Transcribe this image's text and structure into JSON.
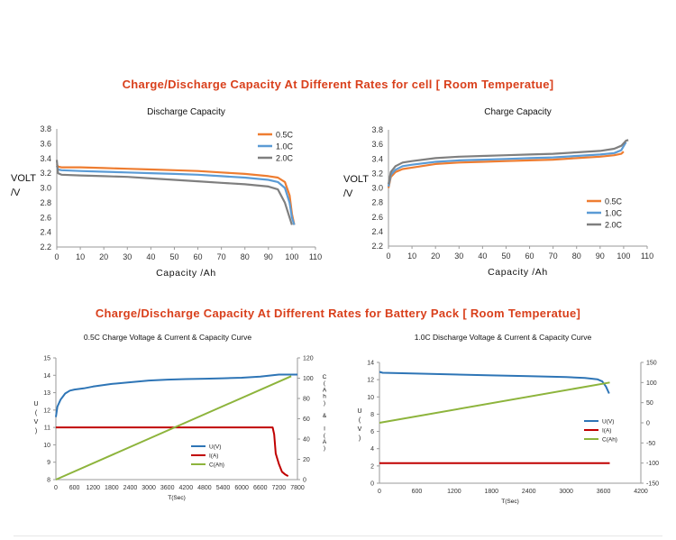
{
  "section1_title": "Charge/Discharge Capacity At Different Rates for cell [ Room Temperatue]",
  "section2_title": "Charge/Discharge Capacity At Different Rates for Battery Pack [ Room Temperatue]",
  "chart_data": [
    {
      "type": "line",
      "title": "Discharge Capacity",
      "xlabel": "Capacity /Ah",
      "ylabel": "VOLT /V",
      "xlim": [
        0,
        110
      ],
      "ylim": [
        2.2,
        3.8
      ],
      "xticks": [
        0,
        10,
        20,
        30,
        40,
        50,
        60,
        70,
        80,
        90,
        100,
        110
      ],
      "yticks": [
        2.2,
        2.4,
        2.6,
        2.8,
        3.0,
        3.2,
        3.4,
        3.6,
        3.8
      ],
      "legend": "top-right",
      "grid": false,
      "series": [
        {
          "name": "0.5C",
          "color": "#ee7d31",
          "x": [
            0,
            0.5,
            2,
            10,
            20,
            30,
            40,
            50,
            60,
            70,
            80,
            90,
            94,
            97,
            99,
            100,
            101
          ],
          "y": [
            3.32,
            3.29,
            3.28,
            3.28,
            3.27,
            3.26,
            3.25,
            3.24,
            3.23,
            3.21,
            3.19,
            3.16,
            3.14,
            3.08,
            2.9,
            2.65,
            2.5
          ]
        },
        {
          "name": "1.0C",
          "color": "#5b9bd5",
          "x": [
            0,
            0.5,
            2,
            10,
            20,
            30,
            40,
            50,
            60,
            70,
            80,
            90,
            94,
            97,
            99,
            100,
            101
          ],
          "y": [
            3.3,
            3.25,
            3.24,
            3.23,
            3.22,
            3.21,
            3.2,
            3.19,
            3.18,
            3.16,
            3.14,
            3.11,
            3.08,
            3.0,
            2.8,
            2.6,
            2.5
          ]
        },
        {
          "name": "2.0C",
          "color": "#7f7f7f",
          "x": [
            0,
            0.5,
            2,
            10,
            20,
            30,
            40,
            50,
            60,
            70,
            80,
            90,
            94,
            97,
            99,
            100
          ],
          "y": [
            3.38,
            3.2,
            3.18,
            3.17,
            3.16,
            3.15,
            3.13,
            3.11,
            3.09,
            3.07,
            3.05,
            3.02,
            2.98,
            2.8,
            2.6,
            2.5
          ]
        }
      ]
    },
    {
      "type": "line",
      "title": "Charge Capacity",
      "xlabel": "Capacity /Ah",
      "ylabel": "VOLT /V",
      "xlim": [
        0,
        110
      ],
      "ylim": [
        2.2,
        3.8
      ],
      "xticks": [
        0,
        10,
        20,
        30,
        40,
        50,
        60,
        70,
        80,
        90,
        100,
        110
      ],
      "yticks": [
        2.2,
        2.4,
        2.6,
        2.8,
        3.0,
        3.2,
        3.4,
        3.6,
        3.8
      ],
      "legend": "bottom-right",
      "grid": false,
      "series": [
        {
          "name": "0.5C",
          "color": "#ee7d31",
          "x": [
            0,
            1,
            3,
            6,
            10,
            20,
            30,
            40,
            50,
            60,
            70,
            80,
            90,
            96,
            99,
            100
          ],
          "y": [
            3.0,
            3.15,
            3.22,
            3.26,
            3.28,
            3.33,
            3.35,
            3.36,
            3.37,
            3.38,
            3.39,
            3.41,
            3.43,
            3.45,
            3.47,
            3.5
          ]
        },
        {
          "name": "1.0C",
          "color": "#5b9bd5",
          "x": [
            0,
            1,
            3,
            6,
            10,
            20,
            30,
            40,
            50,
            60,
            70,
            80,
            90,
            96,
            99,
            101
          ],
          "y": [
            3.02,
            3.18,
            3.25,
            3.3,
            3.32,
            3.36,
            3.38,
            3.39,
            3.4,
            3.41,
            3.42,
            3.44,
            3.46,
            3.48,
            3.52,
            3.63
          ]
        },
        {
          "name": "2.0C",
          "color": "#7f7f7f",
          "x": [
            0,
            1,
            3,
            6,
            10,
            20,
            30,
            40,
            50,
            60,
            70,
            80,
            90,
            96,
            99,
            101,
            102
          ],
          "y": [
            3.05,
            3.22,
            3.3,
            3.35,
            3.37,
            3.41,
            3.43,
            3.44,
            3.45,
            3.46,
            3.47,
            3.49,
            3.51,
            3.54,
            3.58,
            3.65,
            3.66
          ]
        }
      ]
    },
    {
      "type": "line",
      "title": "0.5C Charge Voltage & Current & Capacity Curve",
      "xlabel": "T(Sec)",
      "ylabel": "U(V)",
      "ylabel_right": "C(Ah) & I(A)",
      "xlim": [
        0,
        7800
      ],
      "ylim": [
        8,
        15
      ],
      "ylim_right": [
        0,
        120
      ],
      "xticks": [
        0,
        600,
        1200,
        1800,
        2400,
        3000,
        3600,
        4200,
        4800,
        5400,
        6000,
        6600,
        7200,
        7800
      ],
      "yticks": [
        8,
        9,
        10,
        11,
        12,
        13,
        14,
        15
      ],
      "yticks_right": [
        0,
        20,
        40,
        60,
        80,
        100,
        120
      ],
      "legend": "bottom-right",
      "grid": false,
      "series": [
        {
          "name": "U(V)",
          "color": "#2e75b6",
          "axis": "left",
          "x": [
            0,
            50,
            150,
            300,
            450,
            600,
            900,
            1200,
            1800,
            2400,
            3000,
            3600,
            4200,
            4800,
            5400,
            6000,
            6600,
            7000,
            7200,
            7500,
            7800
          ],
          "y": [
            11.6,
            12.2,
            12.6,
            12.95,
            13.12,
            13.18,
            13.25,
            13.35,
            13.5,
            13.6,
            13.7,
            13.75,
            13.78,
            13.8,
            13.83,
            13.86,
            13.92,
            14.0,
            14.04,
            14.04,
            14.04
          ]
        },
        {
          "name": "I(A)",
          "color": "#c00000",
          "axis": "left",
          "x": [
            0,
            7000,
            7050,
            7100,
            7200,
            7300,
            7400,
            7500
          ],
          "y": [
            11.0,
            11.0,
            10.6,
            9.5,
            8.9,
            8.45,
            8.3,
            8.2
          ]
        },
        {
          "name": "C(Ah)",
          "color": "#8db43c",
          "axis": "right",
          "x": [
            0,
            7600
          ],
          "y": [
            0,
            102
          ]
        }
      ]
    },
    {
      "type": "line",
      "title": "1.0C Discharge Voltage & Current & Capacity Curve",
      "xlabel": "T(Sec)",
      "ylabel": "U(V)",
      "xlim": [
        0,
        4200
      ],
      "ylim": [
        0,
        14
      ],
      "ylim_right": [
        -150,
        150
      ],
      "xticks": [
        0,
        600,
        1200,
        1800,
        2400,
        3000,
        3600,
        4200
      ],
      "yticks": [
        0,
        2,
        4,
        6,
        8,
        10,
        12,
        14
      ],
      "yticks_right": [
        -150,
        -100,
        -50,
        0,
        50,
        100,
        150
      ],
      "legend": "right",
      "grid": false,
      "series": [
        {
          "name": "U(V)",
          "color": "#2e75b6",
          "axis": "left",
          "x": [
            0,
            50,
            600,
            1200,
            1800,
            2400,
            3000,
            3300,
            3500,
            3580,
            3640,
            3690
          ],
          "y": [
            12.9,
            12.8,
            12.7,
            12.6,
            12.5,
            12.4,
            12.3,
            12.2,
            12.05,
            11.8,
            11.2,
            10.4
          ]
        },
        {
          "name": "I(A)",
          "color": "#c00000",
          "axis": "right",
          "x": [
            0,
            3700
          ],
          "y": [
            -100,
            -100
          ]
        },
        {
          "name": "C(Ah)",
          "color": "#8db43c",
          "axis": "right",
          "x": [
            0,
            3700
          ],
          "y": [
            0,
            100
          ]
        }
      ]
    }
  ]
}
